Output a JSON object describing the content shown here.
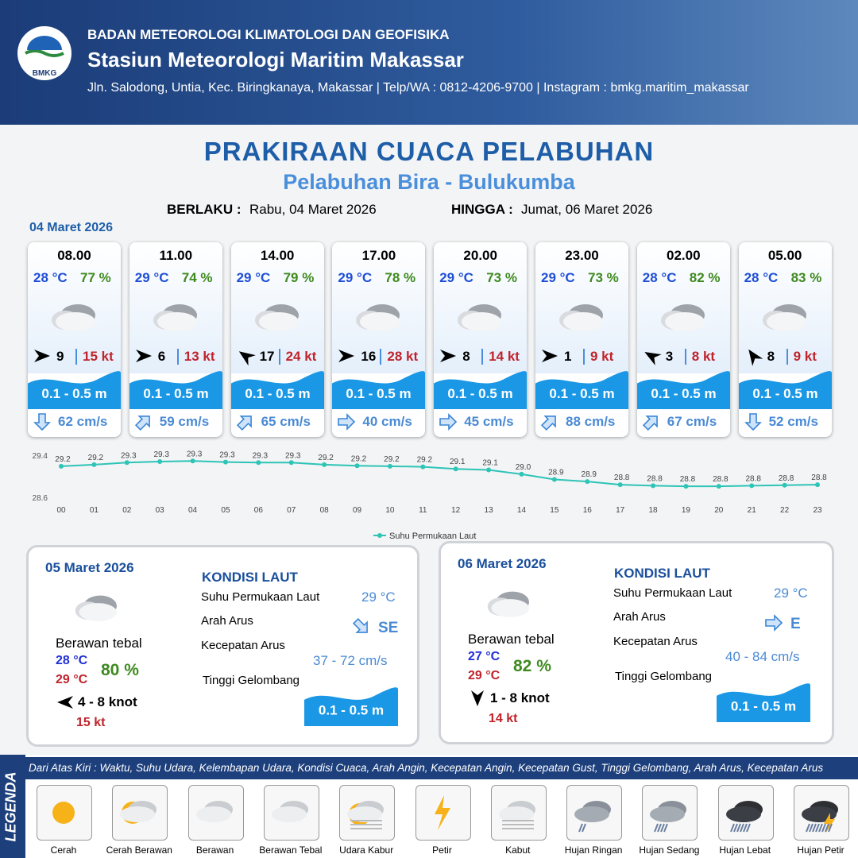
{
  "header": {
    "logo": "BMKG",
    "org": "BADAN METEOROLOGI KLIMATOLOGI DAN GEOFISIKA",
    "station": "Stasiun Meteorologi Maritim Makassar",
    "address": "Jln. Salodong, Untia, Kec. Biringkanaya, Makassar | Telp/WA : 0812-4206-9700 | Instagram : bmkg.maritim_makassar"
  },
  "title": "PRAKIRAAN CUACA PELABUHAN",
  "subtitle": "Pelabuhan Bira - Bulukumba",
  "validity": {
    "from_label": "BERLAKU :",
    "from": "Rabu, 04 Maret 2026",
    "to_label": "HINGGA :",
    "to": "Jumat, 06 Maret 2026"
  },
  "forecast": {
    "date": "04 Maret 2026",
    "cards": [
      {
        "time": "08.00",
        "temp": "28 °C",
        "rh": "77 %",
        "wind": "9",
        "gust": "15 kt",
        "wave": "0.1 - 0.5 m",
        "current": "62 cm/s"
      },
      {
        "time": "11.00",
        "temp": "29 °C",
        "rh": "74 %",
        "wind": "6",
        "gust": "13 kt",
        "wave": "0.1 - 0.5 m",
        "current": "59 cm/s"
      },
      {
        "time": "14.00",
        "temp": "29 °C",
        "rh": "79 %",
        "wind": "17",
        "gust": "24 kt",
        "wave": "0.1 - 0.5 m",
        "current": "65 cm/s"
      },
      {
        "time": "17.00",
        "temp": "29 °C",
        "rh": "78 %",
        "wind": "16",
        "gust": "28 kt",
        "wave": "0.1 - 0.5 m",
        "current": "40 cm/s"
      },
      {
        "time": "20.00",
        "temp": "29 °C",
        "rh": "73 %",
        "wind": "8",
        "gust": "14 kt",
        "wave": "0.1 - 0.5 m",
        "current": "45 cm/s"
      },
      {
        "time": "23.00",
        "temp": "29 °C",
        "rh": "73 %",
        "wind": "1",
        "gust": "9 kt",
        "wave": "0.1 - 0.5 m",
        "current": "88 cm/s"
      },
      {
        "time": "02.00",
        "temp": "28 °C",
        "rh": "82 %",
        "wind": "3",
        "gust": "8 kt",
        "wave": "0.1 - 0.5 m",
        "current": "67 cm/s"
      },
      {
        "time": "05.00",
        "temp": "28 °C",
        "rh": "83 %",
        "wind": "8",
        "gust": "9 kt",
        "wave": "0.1 - 0.5 m",
        "current": "52 cm/s"
      }
    ]
  },
  "chart_data": {
    "type": "line",
    "legend": "Suhu Permukaan Laut",
    "color": "#2ec4b6",
    "categories": [
      "00",
      "01",
      "02",
      "03",
      "04",
      "05",
      "06",
      "07",
      "08",
      "09",
      "10",
      "11",
      "12",
      "13",
      "14",
      "15",
      "16",
      "17",
      "18",
      "19",
      "20",
      "21",
      "22",
      "23"
    ],
    "values": [
      29.19,
      29.22,
      29.26,
      29.28,
      29.29,
      29.27,
      29.26,
      29.26,
      29.22,
      29.2,
      29.19,
      29.18,
      29.14,
      29.12,
      29.04,
      28.94,
      28.9,
      28.84,
      28.82,
      28.81,
      28.81,
      28.82,
      28.83,
      28.84
    ],
    "value_labels": [
      "29.2",
      "29.2",
      "29.3",
      "29.3",
      "29.3",
      "29.3",
      "29.3",
      "29.3",
      "29.2",
      "29.2",
      "29.2",
      "29.2",
      "29.1",
      "29.1",
      "29.0",
      "28.9",
      "28.9",
      "28.8",
      "28.8",
      "28.8",
      "28.8",
      "28.8",
      "28.8",
      "28.8"
    ],
    "ylim": [
      28.6,
      29.4
    ],
    "yticks": [
      28.6,
      29.4
    ]
  },
  "daily": [
    {
      "date": "05 Maret 2026",
      "condition": "Berawan tebal",
      "temp_min": "28 °C",
      "temp_max": "29 °C",
      "rh": "80 %",
      "wind": "4  - 8 knot",
      "gust": "15 kt",
      "sea_title": "KONDISI LAUT",
      "sst_label": "Suhu Permukaan Laut",
      "sst": "29 °C",
      "dir_label": "Arah Arus",
      "dir": "SE",
      "speed_label": "Kecepatan Arus",
      "speed": "37 - 72 cm/s",
      "wave_label": "Tinggi Gelombang",
      "wave": "0.1 - 0.5 m"
    },
    {
      "date": "06 Maret 2026",
      "condition": "Berawan tebal",
      "temp_min": "27 °C",
      "temp_max": "29 °C",
      "rh": "82 %",
      "wind": "1  - 8 knot",
      "gust": "14 kt",
      "sea_title": "KONDISI LAUT",
      "sst_label": "Suhu Permukaan Laut",
      "sst": "29 °C",
      "dir_label": "Arah Arus",
      "dir": "E",
      "speed_label": "Kecepatan Arus",
      "speed": "40 - 84 cm/s",
      "wave_label": "Tinggi Gelombang",
      "wave": "0.1 - 0.5 m"
    }
  ],
  "legend": {
    "title": "LEGENDA",
    "note": "Dari Atas Kiri : Waktu, Suhu Udara, Kelembapan Udara, Kondisi Cuaca, Arah Angin, Kecepatan Angin, Kecepatan Gust, Tinggi Gelombang, Arah Arus, Kecepatan Arus",
    "items": [
      "Cerah",
      "Cerah Berawan",
      "Berawan",
      "Berawan Tebal",
      "Udara Kabur",
      "Petir",
      "Kabut",
      "Hujan Ringan",
      "Hujan Sedang",
      "Hujan Lebat",
      "Hujan Petir"
    ]
  }
}
